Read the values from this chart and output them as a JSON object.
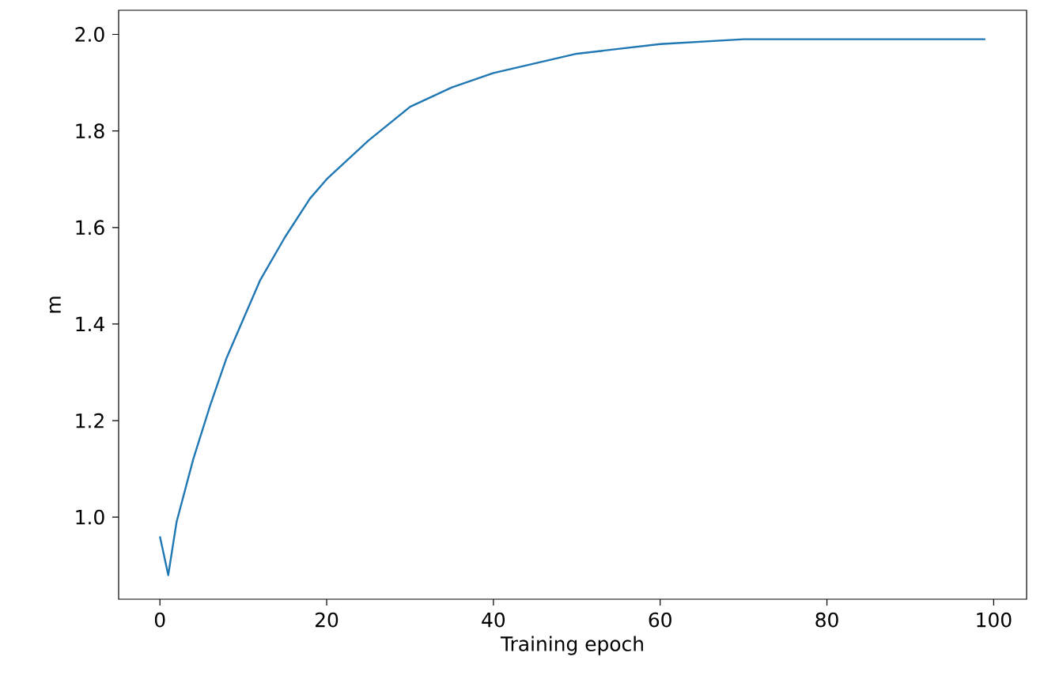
{
  "chart_data": {
    "type": "line",
    "xlabel": "Training epoch",
    "ylabel": "m",
    "x": [
      0,
      1,
      2,
      4,
      6,
      8,
      10,
      12,
      15,
      18,
      20,
      25,
      30,
      35,
      40,
      45,
      50,
      60,
      70,
      80,
      90,
      99
    ],
    "series": [
      {
        "color": "#1f77b4",
        "values": [
          0.96,
          0.88,
          0.99,
          1.12,
          1.23,
          1.33,
          1.41,
          1.49,
          1.58,
          1.66,
          1.7,
          1.78,
          1.85,
          1.89,
          1.92,
          1.94,
          1.96,
          1.98,
          1.99,
          1.99,
          1.99,
          1.99
        ]
      }
    ],
    "xlim": [
      -4.95,
      103.95
    ],
    "ylim": [
      0.83,
      2.05
    ],
    "xticks": [
      0,
      20,
      40,
      60,
      80,
      100
    ],
    "yticks": [
      {
        "value": 1.0,
        "label": "1.0"
      },
      {
        "value": 1.2,
        "label": "1.2"
      },
      {
        "value": 1.4,
        "label": "1.4"
      },
      {
        "value": 1.6,
        "label": "1.6"
      },
      {
        "value": 1.8,
        "label": "1.8"
      },
      {
        "value": 2.0,
        "label": "2.0"
      }
    ],
    "marker": "none",
    "line_style": "solid"
  }
}
